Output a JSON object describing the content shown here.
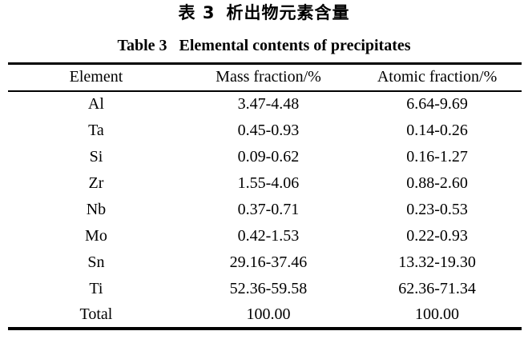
{
  "caption": {
    "chinese_label": "表 3",
    "chinese_text": "析出物元素含量",
    "english_label": "Table 3",
    "english_text": "Elemental contents of precipitates"
  },
  "table": {
    "headers": [
      "Element",
      "Mass fraction/%",
      "Atomic fraction/%"
    ],
    "rows": [
      [
        "Al",
        "3.47-4.48",
        "6.64-9.69"
      ],
      [
        "Ta",
        "0.45-0.93",
        "0.14-0.26"
      ],
      [
        "Si",
        "0.09-0.62",
        "0.16-1.27"
      ],
      [
        "Zr",
        "1.55-4.06",
        "0.88-2.60"
      ],
      [
        "Nb",
        "0.37-0.71",
        "0.23-0.53"
      ],
      [
        "Mo",
        "0.42-1.53",
        "0.22-0.93"
      ],
      [
        "Sn",
        "29.16-37.46",
        "13.32-19.30"
      ],
      [
        "Ti",
        "52.36-59.58",
        "62.36-71.34"
      ],
      [
        "Total",
        "100.00",
        "100.00"
      ]
    ]
  },
  "colors": {
    "text": "#000000",
    "background": "#ffffff",
    "rule": "#000000"
  }
}
